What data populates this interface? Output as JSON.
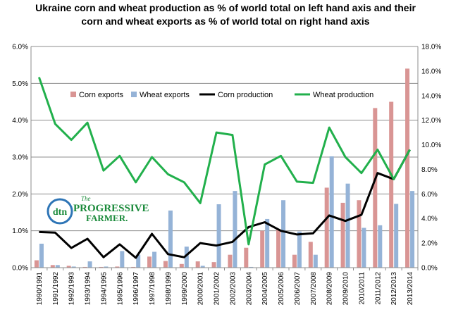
{
  "chart_data": {
    "type": "bar",
    "title_lines": [
      "Ukraine corn and wheat production as % of world total on left hand axis and their",
      "corn and wheat exports as % of world total on right hand axis"
    ],
    "categories": [
      "1990/1991",
      "1991/1992",
      "1992/1993",
      "1993/1994",
      "1994/1995",
      "1995/1996",
      "1996/1997",
      "1997/1998",
      "1998/1999",
      "1999/2000",
      "2000/2001",
      "2001/2002",
      "2002/2003",
      "2003/2004",
      "2004/2005",
      "2005/2006",
      "2006/2007",
      "2007/2008",
      "2008/2009",
      "2009/2010",
      "2010/2011",
      "2011/2012",
      "2012/2013",
      "2013/2014"
    ],
    "y_left": {
      "ylim": [
        0,
        6
      ],
      "ticks": [
        "0.0%",
        "1.0%",
        "2.0%",
        "3.0%",
        "4.0%",
        "5.0%",
        "6.0%"
      ]
    },
    "y_right": {
      "ylim": [
        0,
        18
      ],
      "ticks": [
        "0.0%",
        "2.0%",
        "4.0%",
        "6.0%",
        "8.0%",
        "10.0%",
        "12.0%",
        "14.0%",
        "16.0%",
        "18.0%"
      ]
    },
    "series": [
      {
        "name": "Corn exports",
        "kind": "bar",
        "axis": "left",
        "color": "#d99594",
        "values": [
          0.2,
          0.07,
          0.05,
          0.02,
          0.02,
          0.03,
          0.02,
          0.3,
          0.18,
          0.1,
          0.17,
          0.15,
          0.35,
          0.54,
          1.0,
          1.05,
          0.35,
          0.7,
          2.17,
          1.76,
          1.83,
          4.33,
          4.5,
          5.4
        ]
      },
      {
        "name": "Wheat exports",
        "kind": "bar",
        "axis": "left",
        "color": "#95b3d7",
        "values": [
          0.65,
          0.07,
          0.03,
          0.17,
          0.03,
          0.45,
          0.35,
          0.43,
          1.55,
          0.57,
          0.05,
          1.72,
          2.08,
          0.02,
          1.32,
          1.83,
          0.98,
          0.35,
          3.02,
          2.28,
          1.08,
          1.15,
          1.73,
          2.08
        ]
      },
      {
        "name": "Corn production",
        "kind": "line",
        "axis": "right",
        "color": "#000000",
        "values": [
          2.9,
          2.85,
          1.6,
          2.35,
          0.85,
          1.9,
          0.8,
          2.75,
          1.1,
          0.85,
          2.0,
          1.8,
          2.1,
          3.3,
          3.7,
          3.0,
          2.7,
          2.8,
          4.25,
          3.8,
          4.3,
          7.7,
          7.2,
          9.6
        ]
      },
      {
        "name": "Wheat production",
        "kind": "line",
        "axis": "right",
        "color": "#22b04c",
        "values": [
          15.5,
          11.7,
          10.4,
          11.8,
          7.9,
          9.1,
          6.95,
          9.0,
          7.6,
          6.95,
          5.25,
          11.0,
          10.8,
          1.9,
          8.4,
          9.1,
          7.0,
          6.9,
          11.4,
          9.0,
          7.7,
          9.6,
          7.2,
          9.6
        ]
      }
    ],
    "legend": [
      "Corn exports",
      "Wheat exports",
      "Corn production",
      "Wheat production"
    ],
    "legend_placement": "top",
    "grid": true
  },
  "logo": {
    "brand": "dtn",
    "line1": "The",
    "line2": "PROGRESSIVE",
    "line3": "FARMER."
  }
}
